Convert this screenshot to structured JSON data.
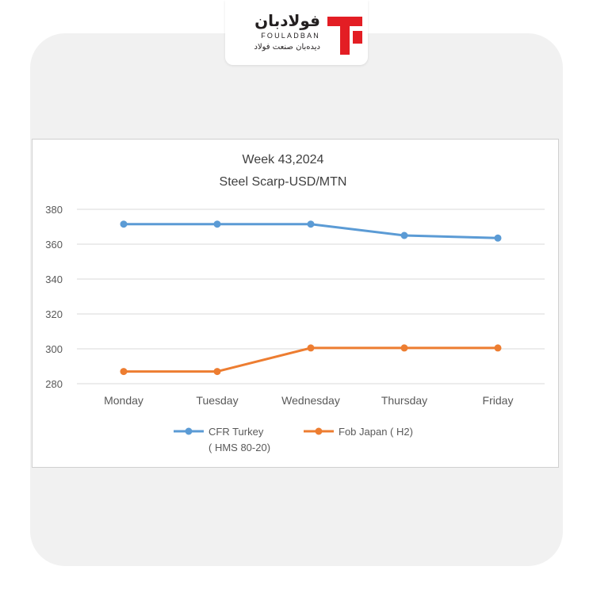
{
  "logo": {
    "name_fa": "فولادبان",
    "name_en": "FOULADBAN",
    "tagline_fa": "دیده‌بان صنعت فولاد",
    "brand_color": "#e31e24"
  },
  "chart_data": {
    "type": "line",
    "title": "Week 43,2024",
    "subtitle": "Steel Scarp-USD/MTN",
    "categories": [
      "Monday",
      "Tuesday",
      "Wednesday",
      "Thursday",
      "Friday"
    ],
    "ylim": [
      280,
      380
    ],
    "yticks": [
      280,
      300,
      320,
      340,
      360,
      380
    ],
    "ytick_labels": [
      "280",
      "300",
      "320",
      "340",
      "360",
      "380"
    ],
    "grid": true,
    "legend_position": "bottom",
    "series": [
      {
        "name": "CFR Turkey",
        "name_line2": "( HMS 80-20)",
        "color": "#5b9bd5",
        "values": [
          371.5,
          371.5,
          371.5,
          365,
          363.5
        ]
      },
      {
        "name": "Fob Japan ( H2)",
        "color": "#ed7d31",
        "values": [
          287,
          287,
          300.5,
          300.5,
          300.5
        ]
      }
    ]
  }
}
